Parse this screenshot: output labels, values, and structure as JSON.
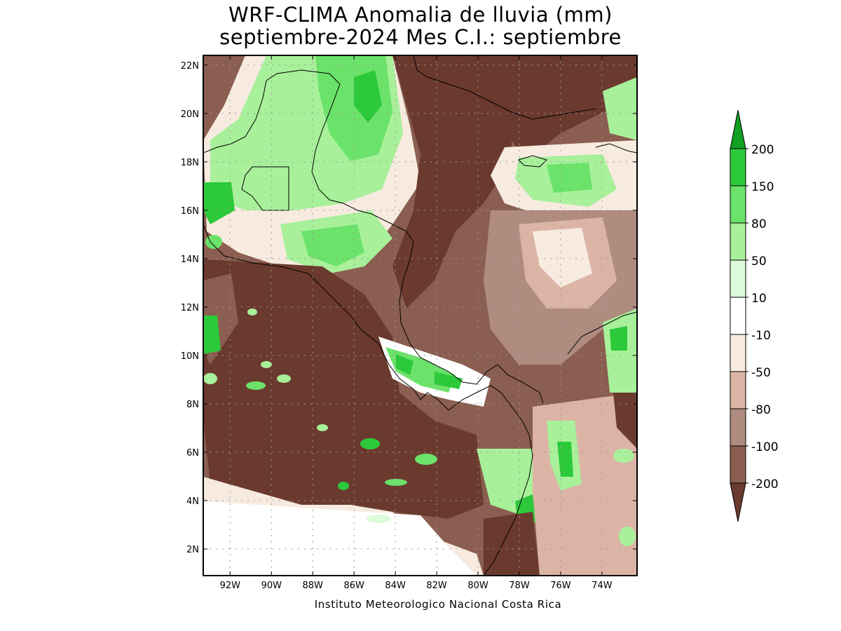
{
  "title": {
    "line1": "WRF-CLIMA Anomalia de lluvia (mm)",
    "line2": "septiembre-2024 Mes C.I.: septiembre"
  },
  "credit": "Instituto Meteorologico Nacional Costa Rica",
  "map": {
    "lon_range": [
      -93.3,
      -72.3
    ],
    "lat_range": [
      0.9,
      22.4
    ],
    "lon_ticks": [
      "92W",
      "90W",
      "88W",
      "86W",
      "84W",
      "82W",
      "80W",
      "78W",
      "76W",
      "74W"
    ],
    "lon_tick_values": [
      -92,
      -90,
      -88,
      -86,
      -84,
      -82,
      -80,
      -78,
      -76,
      -74
    ],
    "lat_ticks": [
      "22N",
      "20N",
      "18N",
      "16N",
      "14N",
      "12N",
      "10N",
      "8N",
      "6N",
      "4N",
      "2N"
    ],
    "lat_tick_values": [
      22,
      20,
      18,
      16,
      14,
      12,
      10,
      8,
      6,
      4,
      2
    ]
  },
  "colorbar": {
    "labels": [
      "200",
      "150",
      "80",
      "50",
      "10",
      "-10",
      "-50",
      "-80",
      "-100",
      "-200"
    ],
    "colors": [
      "#11a022",
      "#2cc93a",
      "#6be26a",
      "#a8f09a",
      "#ddfadb",
      "#ffffff",
      "#f7ebe0",
      "#dcb4a6",
      "#b08c80",
      "#8a5e50",
      "#6b3a2f"
    ]
  },
  "colors": {
    "brown_dark": "#6b3a2f",
    "brown_mid": "#8a5e50",
    "brown_light": "#b08c80",
    "pink": "#dcb4a6",
    "beige": "#f7ebe0",
    "green_light": "#a8f09a",
    "green_mid": "#6be26a",
    "green_dark": "#2cc93a"
  }
}
